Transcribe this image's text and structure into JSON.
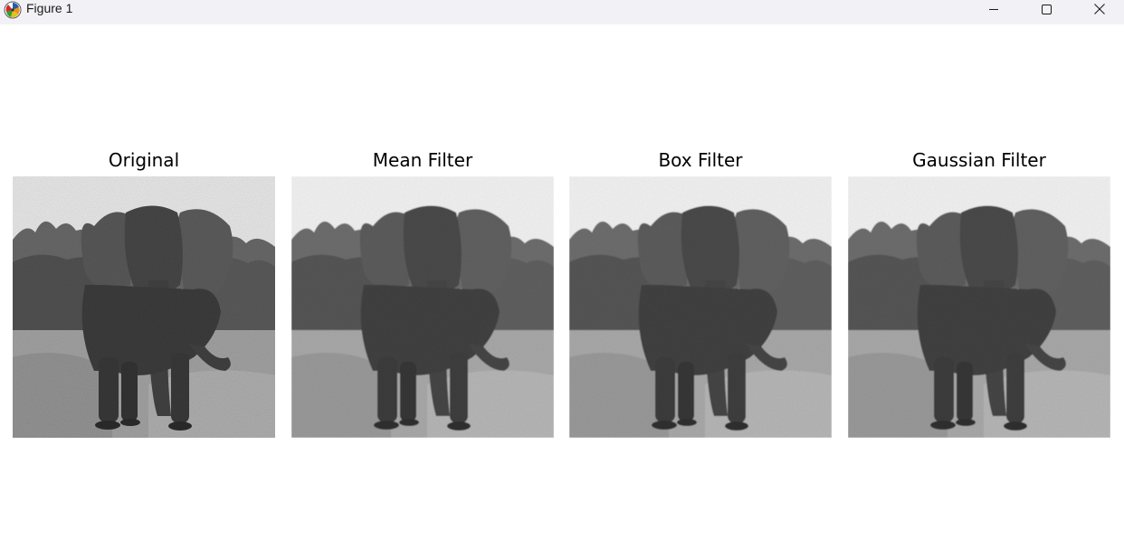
{
  "window": {
    "title": "Figure 1",
    "app_icon": "matplotlib-logo-icon",
    "controls": {
      "minimize_icon": "minimize-icon",
      "maximize_icon": "maximize-icon",
      "close_icon": "close-icon"
    }
  },
  "figure": {
    "subplots": [
      {
        "title": "Original",
        "image": "grayscale elephant photo with heavy noise",
        "noise": "high"
      },
      {
        "title": "Mean Filter",
        "image": "grayscale elephant photo, smoothed",
        "noise": "low"
      },
      {
        "title": "Box Filter",
        "image": "grayscale elephant photo, smoothed",
        "noise": "low"
      },
      {
        "title": "Gaussian Filter",
        "image": "grayscale elephant photo, smoothed",
        "noise": "low"
      }
    ]
  }
}
